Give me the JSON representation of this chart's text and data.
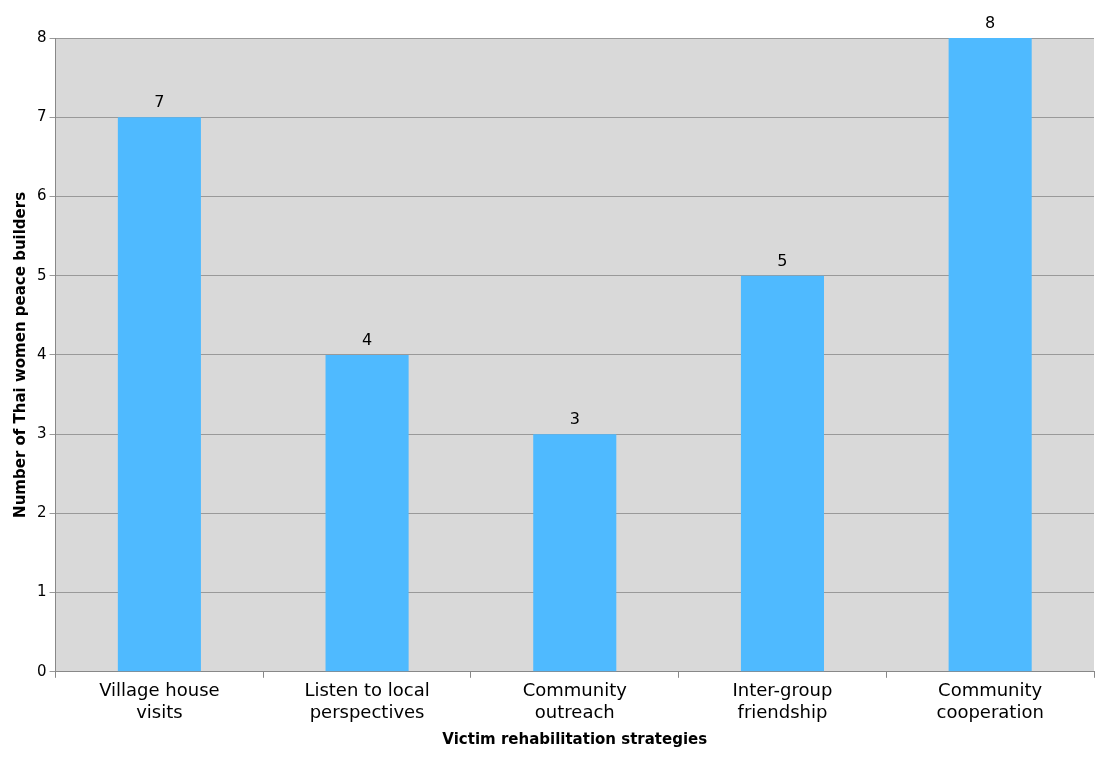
{
  "chart_data": {
    "type": "bar",
    "xlabel": "Victim rehabilitation strategies",
    "ylabel": "Number of Thai women peace builders",
    "categories": [
      "Village house visits",
      "Listen to local perspectives",
      "Community outreach",
      "Inter-group friendship",
      "Community cooperation"
    ],
    "values": [
      7,
      4,
      3,
      5,
      8
    ],
    "color": "#4fbaff",
    "ylim": [
      0,
      8
    ],
    "yticks": [
      0,
      1,
      2,
      3,
      4,
      5,
      6,
      7,
      8
    ],
    "grid": "y",
    "data_labels": true,
    "legend": false
  }
}
